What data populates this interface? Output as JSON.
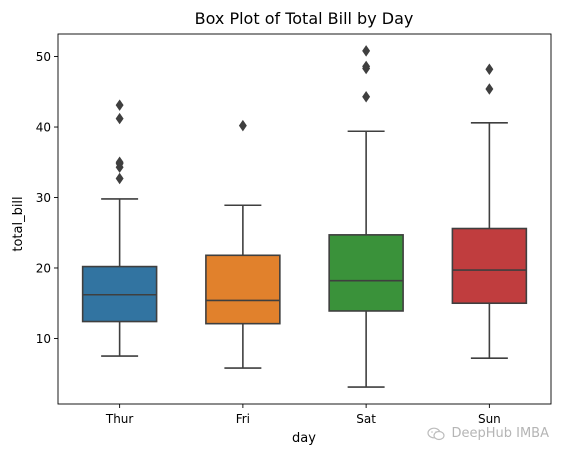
{
  "chart_data": {
    "type": "box",
    "title": "Box Plot of Total Bill by Day",
    "xlabel": "day",
    "ylabel": "total_bill",
    "categories": [
      "Thur",
      "Fri",
      "Sat",
      "Sun"
    ],
    "ylim": [
      0.7,
      53.2
    ],
    "yticks": [
      10,
      20,
      30,
      40,
      50
    ],
    "grid": false,
    "boxes": [
      {
        "category": "Thur",
        "color": "#3274a1",
        "whisker_low": 7.5,
        "q1": 12.4,
        "median": 16.2,
        "q3": 20.2,
        "whisker_high": 29.8,
        "outliers": [
          32.7,
          34.3,
          34.8,
          35.0,
          41.2,
          43.1
        ]
      },
      {
        "category": "Fri",
        "color": "#e1812c",
        "whisker_low": 5.8,
        "q1": 12.1,
        "median": 15.4,
        "q3": 21.8,
        "whisker_high": 28.9,
        "outliers": [
          40.2
        ]
      },
      {
        "category": "Sat",
        "color": "#3a923a",
        "whisker_low": 3.1,
        "q1": 13.9,
        "median": 18.2,
        "q3": 24.7,
        "whisker_high": 39.4,
        "outliers": [
          44.3,
          48.3,
          48.6,
          50.8
        ]
      },
      {
        "category": "Sun",
        "color": "#c03d3e",
        "whisker_low": 7.2,
        "q1": 15.0,
        "median": 19.7,
        "q3": 25.6,
        "whisker_high": 40.6,
        "outliers": [
          45.4,
          48.2
        ]
      }
    ]
  },
  "watermark": {
    "text": "DeepHub IMBA",
    "icon": "wechat-logo-icon"
  }
}
